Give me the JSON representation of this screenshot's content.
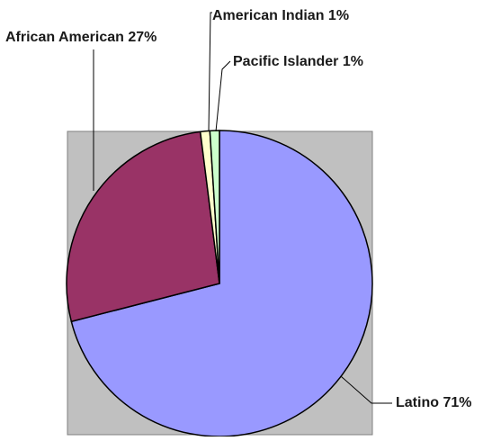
{
  "chart_data": {
    "type": "pie",
    "title": "",
    "slices": [
      {
        "label": "Latino 71%",
        "category": "Latino",
        "value": 71,
        "color": "#9999FF"
      },
      {
        "label": "African American 27%",
        "category": "African American",
        "value": 27,
        "color": "#993366"
      },
      {
        "label": "American Indian 1%",
        "category": "American Indian",
        "value": 1,
        "color": "#FFFFCC"
      },
      {
        "label": "Pacific Islander 1%",
        "category": "Pacific Islander",
        "value": 1,
        "color": "#CCFFCC"
      }
    ],
    "start_angle": "12 o'clock",
    "direction": "clockwise",
    "plot_background": "#C0C0C0",
    "legend": "none"
  }
}
